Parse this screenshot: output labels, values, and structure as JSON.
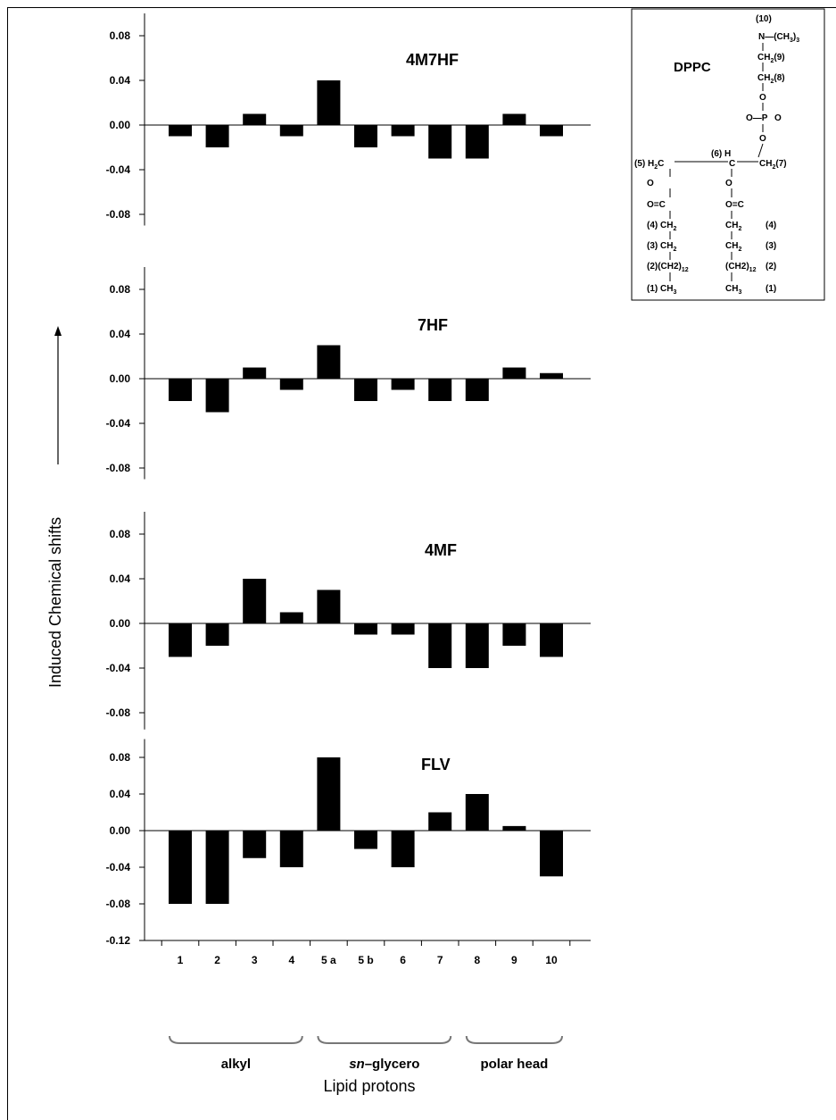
{
  "chart_data": {
    "type": "bar",
    "categories": [
      "1",
      "2",
      "3",
      "4",
      "5 a",
      "5 b",
      "6",
      "7",
      "8",
      "9",
      "10"
    ],
    "ylabel": "Induced Chemical shifts",
    "xlabel": "Lipid protons",
    "groups": [
      {
        "label": "alkyl",
        "from": 0,
        "to": 3,
        "italic_prefix": ""
      },
      {
        "label": "–glycero",
        "from": 4,
        "to": 7,
        "italic_prefix": "sn"
      },
      {
        "label": "polar head",
        "from": 8,
        "to": 10,
        "italic_prefix": ""
      }
    ],
    "panels": [
      {
        "title": "4M7HF",
        "ticks": [
          "0.08",
          "0.04",
          "0.00",
          "-0.04",
          "-0.08"
        ],
        "tick_values": [
          0.08,
          0.04,
          0.0,
          -0.04,
          -0.08
        ],
        "ylim": [
          -0.09,
          0.1
        ],
        "values": [
          -0.01,
          -0.02,
          0.01,
          -0.01,
          0.04,
          -0.02,
          -0.01,
          -0.03,
          -0.03,
          0.01,
          -0.01
        ]
      },
      {
        "title": "7HF",
        "ticks": [
          "0.08",
          "0.04",
          "0.00",
          "-0.04",
          "-0.08"
        ],
        "tick_values": [
          0.08,
          0.04,
          0.0,
          -0.04,
          -0.08
        ],
        "ylim": [
          -0.09,
          0.1
        ],
        "values": [
          -0.02,
          -0.03,
          0.01,
          -0.01,
          0.03,
          -0.02,
          -0.01,
          -0.02,
          -0.02,
          0.01,
          0.005
        ]
      },
      {
        "title": "4MF",
        "ticks": [
          "0.08",
          "0.04",
          "0.00",
          "-0.04",
          "-0.08"
        ],
        "tick_values": [
          0.08,
          0.04,
          0.0,
          -0.04,
          -0.08
        ],
        "ylim": [
          -0.095,
          0.1
        ],
        "values": [
          -0.03,
          -0.02,
          0.04,
          0.01,
          0.03,
          -0.01,
          -0.01,
          -0.04,
          -0.04,
          -0.02,
          -0.03
        ]
      },
      {
        "title": "FLV",
        "ticks": [
          "0.08",
          "0.04",
          "0.00",
          "-0.04",
          "-0.08",
          "-0.12"
        ],
        "tick_values": [
          0.08,
          0.04,
          0.0,
          -0.04,
          -0.08,
          -0.12
        ],
        "ylim": [
          -0.12,
          0.1
        ],
        "values": [
          -0.08,
          -0.08,
          -0.03,
          -0.04,
          0.08,
          -0.02,
          -0.04,
          0.02,
          0.04,
          0.005,
          -0.05
        ]
      }
    ]
  },
  "structure": {
    "title": "DPPC",
    "head": {
      "n10": "(10)",
      "n_group": "N—(CH",
      "n_sub": "3",
      "n_close": ")",
      "n_sub2": "3",
      "ch2_9": "CH",
      "ch2_9_sub": "2",
      "ch2_9_label": "(9)",
      "ch2_8": "CH",
      "ch2_8_sub": "2",
      "ch2_8_label": "(8)",
      "o1": "O",
      "phos": "O—P",
      "phos_o": "O",
      "o2": "O"
    },
    "backbone": {
      "left_label": "(5) H",
      "left_sub": "2",
      "left_c": "C",
      "mid_label": "(6) H",
      "mid_c": "C",
      "right_ch": "CH",
      "right_sub": "2",
      "right_label": "(7)"
    },
    "chain_left": [
      "O",
      "O=C",
      "(4) CH",
      "(3) CH",
      "(2)(CH2)",
      "(1) CH"
    ],
    "chain_left_subs": [
      "",
      "",
      "2",
      "2",
      "12",
      "3"
    ],
    "chain_right": [
      "O",
      "O=C",
      "CH",
      "CH",
      "(CH2)",
      "CH"
    ],
    "chain_right_subs": [
      "",
      "",
      "2",
      "2",
      "12",
      "3"
    ],
    "chain_right_labels": [
      "",
      "",
      "(4)",
      "(3)",
      "(2)",
      "(1)"
    ]
  }
}
